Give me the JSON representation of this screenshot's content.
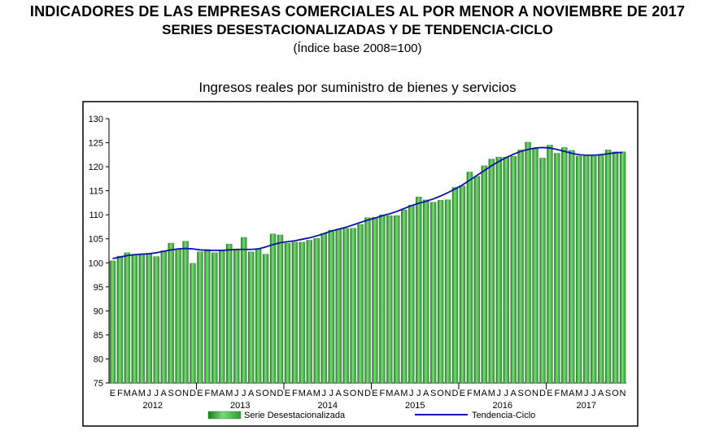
{
  "header": {
    "title": "INDICADORES DE LAS EMPRESAS COMERCIALES AL POR MENOR A NOVIEMBRE DE 2017",
    "subtitle": "SERIES DESESTACIONALIZADAS Y DE TENDENCIA-CICLO",
    "base": "(Índice base 2008=100)"
  },
  "colors": {
    "bar_fill": "#4cb84c",
    "bar_dark": "#1e7d1e",
    "trend_line": "#0a14a8",
    "frame": "#000000"
  },
  "chart_data": {
    "type": "bar",
    "title": "Ingresos reales por suministro de bienes y servicios",
    "ylim": [
      75,
      130
    ],
    "yticks": [
      75,
      80,
      85,
      90,
      95,
      100,
      105,
      110,
      115,
      120,
      125,
      130
    ],
    "month_labels": [
      "E",
      "F",
      "M",
      "A",
      "M",
      "J",
      "J",
      "A",
      "S",
      "O",
      "N",
      "D",
      "E",
      "F",
      "M",
      "A",
      "M",
      "J",
      "J",
      "A",
      "S",
      "O",
      "N",
      "D",
      "E",
      "F",
      "M",
      "A",
      "M",
      "J",
      "J",
      "A",
      "S",
      "O",
      "N",
      "D",
      "E",
      "F",
      "M",
      "A",
      "M",
      "J",
      "J",
      "A",
      "S",
      "O",
      "N",
      "D",
      "E",
      "F",
      "M",
      "A",
      "M",
      "J",
      "J",
      "A",
      "S",
      "O",
      "N",
      "D",
      "E",
      "F",
      "M",
      "A",
      "M",
      "J",
      "J",
      "A",
      "S",
      "O",
      "N"
    ],
    "years": [
      {
        "label": "2012",
        "start": 0,
        "count": 12
      },
      {
        "label": "2013",
        "start": 12,
        "count": 12
      },
      {
        "label": "2014",
        "start": 24,
        "count": 12
      },
      {
        "label": "2015",
        "start": 36,
        "count": 12
      },
      {
        "label": "2016",
        "start": 48,
        "count": 12
      },
      {
        "label": "2017",
        "start": 60,
        "count": 11
      }
    ],
    "series": [
      {
        "name": "Serie Desestacionalizada",
        "type": "bar",
        "values": [
          100.4,
          101.4,
          102.1,
          101.8,
          101.9,
          101.9,
          101.3,
          102.5,
          104.1,
          102.8,
          104.5,
          99.9,
          102.3,
          102.8,
          102.1,
          102.5,
          103.9,
          102.6,
          105.3,
          102.3,
          103.0,
          101.8,
          106.0,
          105.8,
          104.1,
          104.3,
          104.3,
          104.7,
          105.1,
          106.1,
          106.8,
          107.0,
          107.2,
          107.2,
          108.0,
          109.4,
          109.5,
          110.0,
          109.8,
          109.8,
          111.0,
          112.0,
          113.7,
          113.1,
          112.6,
          113.0,
          113.1,
          115.7,
          116.0,
          118.9,
          118.0,
          120.2,
          121.6,
          122.0,
          122.0,
          122.2,
          123.5,
          125.1,
          123.7,
          121.8,
          124.5,
          122.8,
          124.0,
          123.4,
          122.2,
          122.2,
          122.2,
          122.3,
          123.5,
          123.1,
          123.1
        ]
      },
      {
        "name": "Tendencia-Ciclo",
        "type": "line",
        "values": [
          100.9,
          101.2,
          101.5,
          101.7,
          101.8,
          101.9,
          102.1,
          102.4,
          102.7,
          102.9,
          103.0,
          102.9,
          102.7,
          102.6,
          102.6,
          102.6,
          102.7,
          102.8,
          102.8,
          102.8,
          102.9,
          103.3,
          103.8,
          104.2,
          104.4,
          104.6,
          104.9,
          105.2,
          105.6,
          106.1,
          106.6,
          107.0,
          107.4,
          107.9,
          108.4,
          108.9,
          109.3,
          109.8,
          110.2,
          110.7,
          111.3,
          111.9,
          112.4,
          112.8,
          113.3,
          113.9,
          114.6,
          115.4,
          116.2,
          117.2,
          118.2,
          119.2,
          120.2,
          121.1,
          121.9,
          122.6,
          123.2,
          123.6,
          123.9,
          124.0,
          123.9,
          123.6,
          123.2,
          122.8,
          122.5,
          122.4,
          122.4,
          122.5,
          122.7,
          122.9,
          123.0
        ]
      }
    ],
    "legend": [
      "Serie Desestacionalizada",
      "Tendencia-Ciclo"
    ],
    "legend_position": "bottom",
    "grid": false
  }
}
